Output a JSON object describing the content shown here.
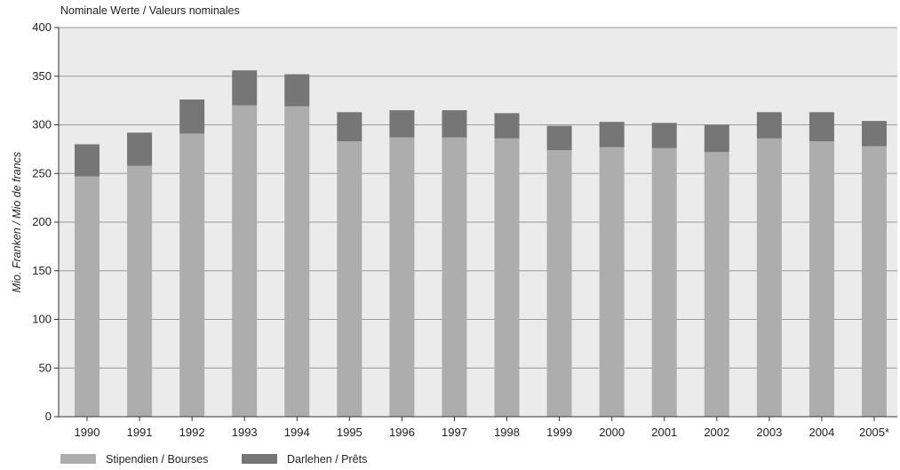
{
  "chart_data": {
    "type": "bar",
    "stacked": true,
    "subtitle": "Nominale Werte / Valeurs nominales",
    "ylabel": "Mio. Franken / Mio de francs",
    "xlabel": "",
    "ylim": [
      0,
      400
    ],
    "yticks": [
      0,
      50,
      100,
      150,
      200,
      250,
      300,
      350,
      400
    ],
    "grid": true,
    "legend_position": "bottom-left",
    "categories": [
      "1990",
      "1991",
      "1992",
      "1993",
      "1994",
      "1995",
      "1996",
      "1997",
      "1998",
      "1999",
      "2000",
      "2001",
      "2002",
      "2003",
      "2004",
      "2005*"
    ],
    "series": [
      {
        "name": "Stipendien / Bourses",
        "color": "#adadad",
        "values": [
          247,
          258,
          291,
          320,
          319,
          283,
          287,
          287,
          286,
          274,
          277,
          276,
          272,
          286,
          283,
          278
        ]
      },
      {
        "name": "Darlehen / Prêts",
        "color": "#767676",
        "values": [
          33,
          34,
          35,
          36,
          33,
          30,
          28,
          28,
          26,
          25,
          26,
          26,
          28,
          27,
          30,
          26
        ]
      }
    ],
    "plot_background": "#ebebeb",
    "gridline_color": "#9a9a9a"
  }
}
